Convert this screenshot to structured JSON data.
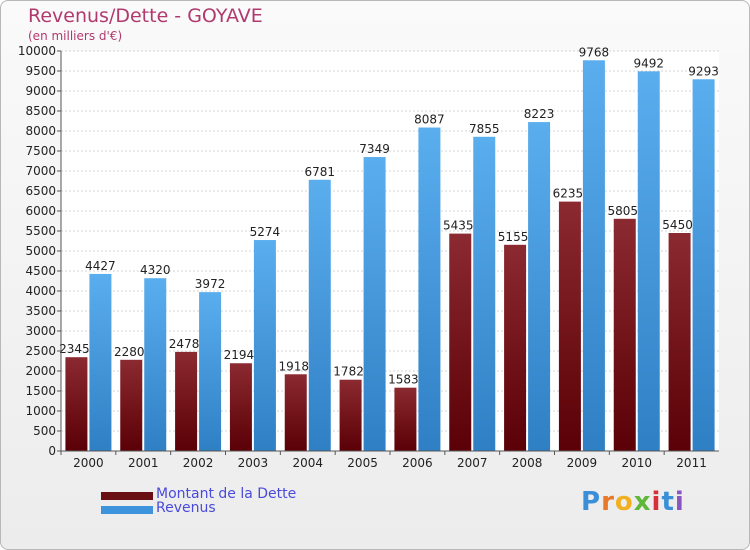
{
  "title": "Revenus/Dette - GOYAVE",
  "subtitle": "(en milliers d'€)",
  "colors": {
    "dette": "#7a1a1e",
    "revenus": "#4aa3e8",
    "title": "#b03a6e",
    "legend_text": "#4a4adb"
  },
  "legend": [
    {
      "label": "Montant de la Dette",
      "color": "#7a1a1e"
    },
    {
      "label": "Revenus",
      "color": "#4aa3e8"
    }
  ],
  "logo": {
    "text": "Proxiti",
    "letters": [
      "P",
      "r",
      "o",
      "x",
      "i",
      "t",
      "i"
    ]
  },
  "chart_data": {
    "type": "bar",
    "categories": [
      "2000",
      "2001",
      "2002",
      "2003",
      "2004",
      "2005",
      "2006",
      "2007",
      "2008",
      "2009",
      "2010",
      "2011"
    ],
    "series": [
      {
        "name": "Montant de la Dette",
        "values": [
          2345,
          2280,
          2478,
          2194,
          1918,
          1782,
          1583,
          5435,
          5155,
          6235,
          5805,
          5450
        ]
      },
      {
        "name": "Revenus",
        "values": [
          4427,
          4320,
          3972,
          5274,
          6781,
          7349,
          8087,
          7855,
          8223,
          9768,
          9492,
          9293
        ]
      }
    ],
    "yticks": [
      "0",
      "500",
      "1000",
      "1500",
      "2000",
      "2500",
      "3000",
      "3500",
      "4000",
      "4500",
      "5000",
      "5500",
      "6000",
      "6500",
      "7000",
      "7500",
      "8000",
      "8500",
      "9000",
      "9500",
      "10000"
    ],
    "ylim": [
      0,
      10000
    ],
    "grid": true,
    "legend_position": "bottom-left"
  }
}
